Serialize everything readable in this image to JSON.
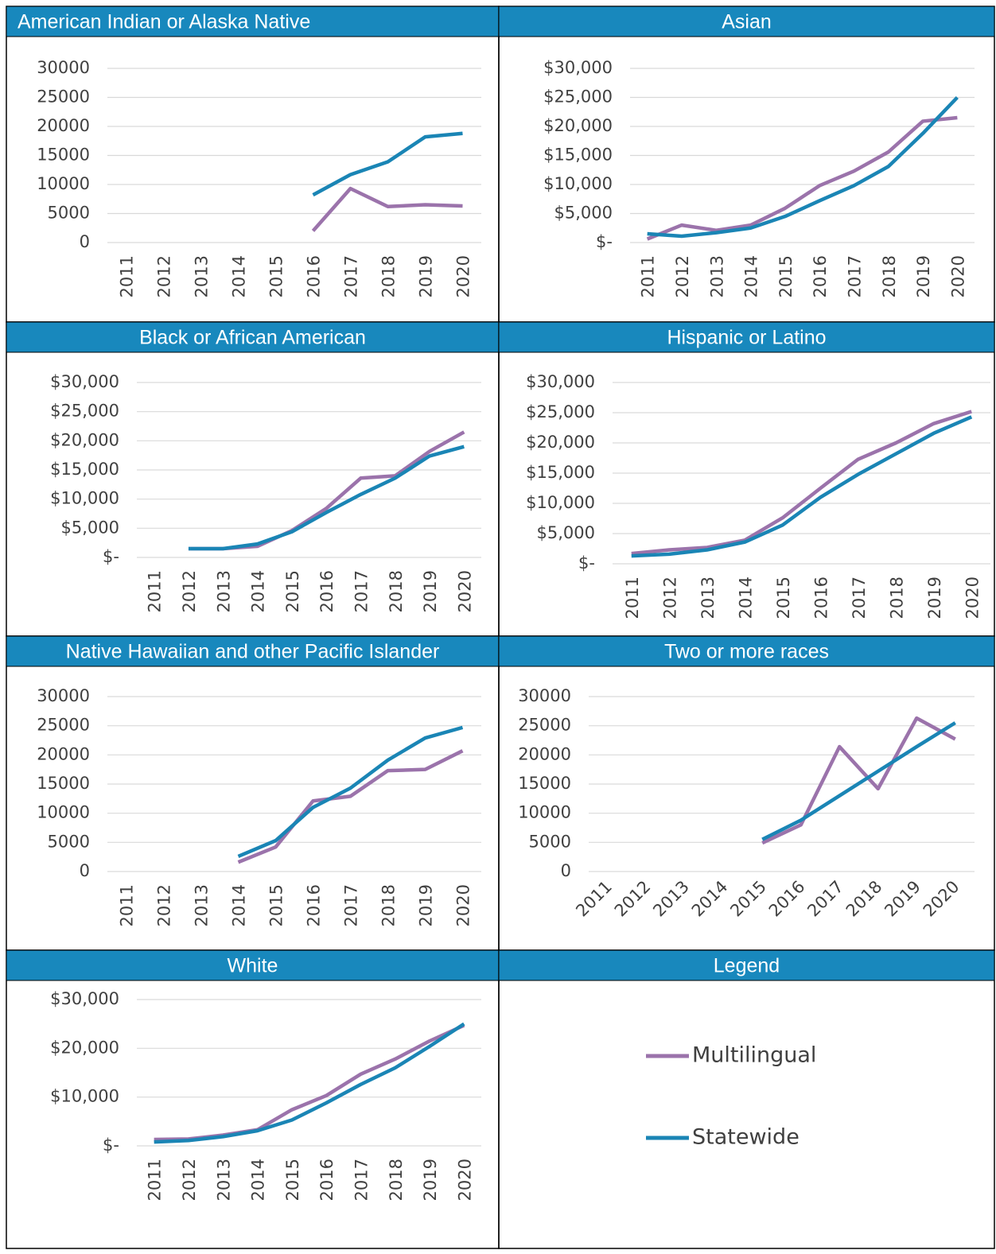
{
  "legend_title": "Legend",
  "chart_data": [
    {
      "type": "line",
      "title": "American Indian or Alaska Native",
      "categories": [
        "2011",
        "2012",
        "2013",
        "2014",
        "2015",
        "2016",
        "2017",
        "2018",
        "2019",
        "2020"
      ],
      "series": [
        {
          "name": "Multilingual",
          "color": "#9b73ab",
          "values": [
            null,
            null,
            null,
            null,
            null,
            2000,
            9300,
            6200,
            6500,
            6300
          ]
        },
        {
          "name": "Statewide",
          "color": "#1a85b5",
          "values": [
            null,
            null,
            null,
            null,
            null,
            8200,
            11700,
            13900,
            18200,
            18800
          ]
        }
      ],
      "ylim": [
        0,
        30000
      ],
      "yticks": [
        0,
        5000,
        10000,
        15000,
        20000,
        25000,
        30000
      ],
      "grid": true,
      "xtick_rotation": 90
    },
    {
      "type": "line",
      "title": "Asian",
      "categories": [
        "2011",
        "2012",
        "2013",
        "2014",
        "2015",
        "2016",
        "2017",
        "2018",
        "2019",
        "2020"
      ],
      "series": [
        {
          "name": "Multilingual",
          "color": "#9b73ab",
          "values": [
            600,
            3000,
            2100,
            3000,
            5900,
            9800,
            12300,
            15600,
            20900,
            21500
          ]
        },
        {
          "name": "Statewide",
          "color": "#1a85b5",
          "values": [
            1500,
            1100,
            1700,
            2500,
            4500,
            7200,
            9800,
            13100,
            18800,
            25000
          ]
        }
      ],
      "ylim": [
        0,
        30000
      ],
      "yticks": [
        {
          "value": 0,
          "label": "$-"
        },
        {
          "value": 5000,
          "label": "$5,000"
        },
        {
          "value": 10000,
          "label": "$10,000"
        },
        {
          "value": 15000,
          "label": "$15,000"
        },
        {
          "value": 20000,
          "label": "$20,000"
        },
        {
          "value": 25000,
          "label": "$25,000"
        },
        {
          "value": 30000,
          "label": "$30,000"
        }
      ],
      "grid": true,
      "xtick_rotation": 90
    },
    {
      "type": "line",
      "title": "Black or African American",
      "categories": [
        "2011",
        "2012",
        "2013",
        "2014",
        "2015",
        "2016",
        "2017",
        "2018",
        "2019",
        "2020"
      ],
      "series": [
        {
          "name": "Multilingual",
          "color": "#9b73ab",
          "values": [
            null,
            1500,
            1500,
            1900,
            4600,
            8400,
            13600,
            14000,
            18200,
            21500
          ]
        },
        {
          "name": "Statewide",
          "color": "#1a85b5",
          "values": [
            null,
            1500,
            1500,
            2300,
            4400,
            7700,
            10800,
            13600,
            17400,
            19000
          ]
        }
      ],
      "ylim": [
        0,
        30000
      ],
      "yticks": [
        {
          "value": 0,
          "label": "$-"
        },
        {
          "value": 5000,
          "label": "$5,000"
        },
        {
          "value": 10000,
          "label": "$10,000"
        },
        {
          "value": 15000,
          "label": "$15,000"
        },
        {
          "value": 20000,
          "label": "$20,000"
        },
        {
          "value": 25000,
          "label": "$25,000"
        },
        {
          "value": 30000,
          "label": "$30,000"
        }
      ],
      "grid": true,
      "xtick_rotation": 90
    },
    {
      "type": "line",
      "title": "Hispanic or Latino",
      "categories": [
        "2011",
        "2012",
        "2013",
        "2014",
        "2015",
        "2016",
        "2017",
        "2018",
        "2019",
        "2020"
      ],
      "series": [
        {
          "name": "Multilingual",
          "color": "#9b73ab",
          "values": [
            1700,
            2300,
            2700,
            3900,
            7600,
            12500,
            17300,
            20000,
            23200,
            25200
          ]
        },
        {
          "name": "Statewide",
          "color": "#1a85b5",
          "values": [
            1300,
            1600,
            2300,
            3600,
            6400,
            11000,
            14800,
            18200,
            21600,
            24300
          ]
        }
      ],
      "ylim": [
        0,
        30000
      ],
      "yticks": [
        {
          "value": 0,
          "label": "$-"
        },
        {
          "value": 5000,
          "label": "$5,000"
        },
        {
          "value": 10000,
          "label": "$10,000"
        },
        {
          "value": 15000,
          "label": "$15,000"
        },
        {
          "value": 20000,
          "label": "$20,000"
        },
        {
          "value": 25000,
          "label": "$25,000"
        },
        {
          "value": 30000,
          "label": "$30,000"
        }
      ],
      "grid": true,
      "xtick_rotation": 90
    },
    {
      "type": "line",
      "title": "Native Hawaiian and other Pacific Islander",
      "categories": [
        "2011",
        "2012",
        "2013",
        "2014",
        "2015",
        "2016",
        "2017",
        "2018",
        "2019",
        "2020"
      ],
      "series": [
        {
          "name": "Multilingual",
          "color": "#9b73ab",
          "values": [
            null,
            null,
            null,
            1600,
            4200,
            12100,
            12900,
            17300,
            17500,
            20700
          ]
        },
        {
          "name": "Statewide",
          "color": "#1a85b5",
          "values": [
            null,
            null,
            null,
            2600,
            5300,
            11000,
            14300,
            19100,
            22900,
            24700
          ]
        }
      ],
      "ylim": [
        0,
        30000
      ],
      "yticks": [
        0,
        5000,
        10000,
        15000,
        20000,
        25000,
        30000
      ],
      "grid": true,
      "xtick_rotation": 90
    },
    {
      "type": "line",
      "title": "Two or more races",
      "categories": [
        "2011",
        "2012",
        "2013",
        "2014",
        "2015",
        "2016",
        "2017",
        "2018",
        "2019",
        "2020"
      ],
      "series": [
        {
          "name": "Multilingual",
          "color": "#9b73ab",
          "values": [
            null,
            null,
            null,
            null,
            4900,
            8000,
            21400,
            14200,
            26300,
            22700
          ]
        },
        {
          "name": "Statewide",
          "color": "#1a85b5",
          "values": [
            null,
            null,
            null,
            null,
            5500,
            8800,
            13000,
            17200,
            21400,
            25500
          ]
        }
      ],
      "ylim": [
        0,
        30000
      ],
      "yticks": [
        0,
        5000,
        10000,
        15000,
        20000,
        25000,
        30000
      ],
      "grid": true,
      "xtick_rotation": 45
    },
    {
      "type": "line",
      "title": "White",
      "categories": [
        "2011",
        "2012",
        "2013",
        "2014",
        "2015",
        "2016",
        "2017",
        "2018",
        "2019",
        "2020"
      ],
      "series": [
        {
          "name": "Multilingual",
          "color": "#9b73ab",
          "values": [
            1300,
            1400,
            2200,
            3300,
            7400,
            10300,
            14700,
            17800,
            21500,
            24700
          ]
        },
        {
          "name": "Statewide",
          "color": "#1a85b5",
          "values": [
            800,
            1100,
            1900,
            3100,
            5300,
            8800,
            12600,
            16000,
            20400,
            25000
          ]
        }
      ],
      "ylim": [
        0,
        30000
      ],
      "yticks": [
        {
          "value": 0,
          "label": "$-"
        },
        {
          "value": 10000,
          "label": "$10,000"
        },
        {
          "value": 20000,
          "label": "$20,000"
        },
        {
          "value": 30000,
          "label": "$30,000"
        }
      ],
      "grid": true,
      "xtick_rotation": 90
    }
  ]
}
